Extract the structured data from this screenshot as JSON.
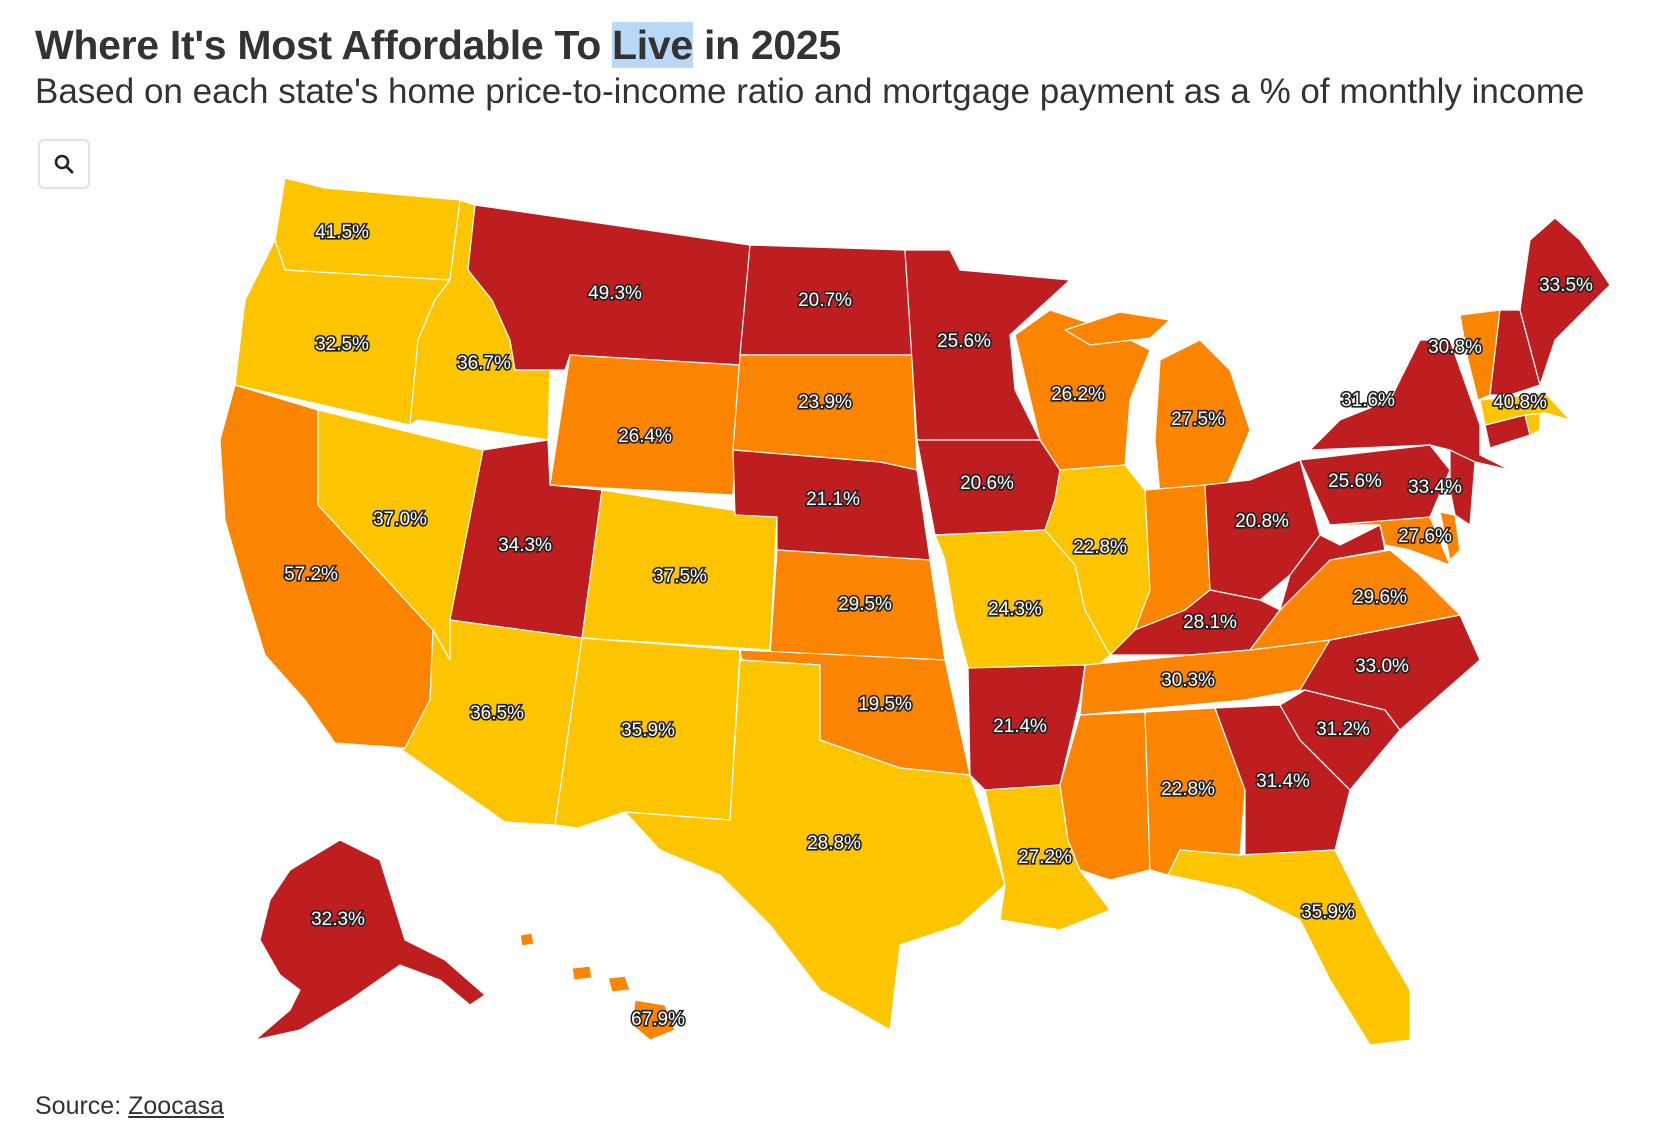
{
  "header": {
    "title_prefix": "Where It's Most Affordable To ",
    "title_highlight": "Live",
    "title_suffix": " in 2025",
    "subtitle": "Based on each state's home price-to-income ratio and mortgage payment as a % of monthly income"
  },
  "controls": {
    "zoom_icon": "search-icon"
  },
  "colors": {
    "dark_red": "#be1e1f",
    "orange": "#fb8500",
    "yellow": "#fdc500",
    "border": "#ffffff"
  },
  "footer": {
    "source_label": "Source: ",
    "source_link": "Zoocasa"
  },
  "states": [
    {
      "id": "WA",
      "value": "41.5%",
      "color": "#fdc500"
    },
    {
      "id": "OR",
      "value": "32.5%",
      "color": "#fdc500"
    },
    {
      "id": "CA",
      "value": "57.2%",
      "color": "#fb8500"
    },
    {
      "id": "ID",
      "value": "36.7%",
      "color": "#fdc500"
    },
    {
      "id": "NV",
      "value": "37.0%",
      "color": "#fdc500"
    },
    {
      "id": "MT",
      "value": "49.3%",
      "color": "#be1e1f"
    },
    {
      "id": "WY",
      "value": "26.4%",
      "color": "#fb8500"
    },
    {
      "id": "UT",
      "value": "34.3%",
      "color": "#be1e1f"
    },
    {
      "id": "CO",
      "value": "37.5%",
      "color": "#fdc500"
    },
    {
      "id": "AZ",
      "value": "36.5%",
      "color": "#fdc500"
    },
    {
      "id": "NM",
      "value": "35.9%",
      "color": "#fdc500"
    },
    {
      "id": "ND",
      "value": "20.7%",
      "color": "#be1e1f"
    },
    {
      "id": "SD",
      "value": "23.9%",
      "color": "#fb8500"
    },
    {
      "id": "NE",
      "value": "21.1%",
      "color": "#be1e1f"
    },
    {
      "id": "KS",
      "value": "29.5%",
      "color": "#fb8500"
    },
    {
      "id": "OK",
      "value": "19.5%",
      "color": "#fb8500"
    },
    {
      "id": "TX",
      "value": "28.8%",
      "color": "#fdc500"
    },
    {
      "id": "MN",
      "value": "25.6%",
      "color": "#be1e1f"
    },
    {
      "id": "IA",
      "value": "20.6%",
      "color": "#be1e1f"
    },
    {
      "id": "MO",
      "value": "24.3%",
      "color": "#fdc500"
    },
    {
      "id": "AR",
      "value": "21.4%",
      "color": "#be1e1f"
    },
    {
      "id": "LA",
      "value": "27.2%",
      "color": "#fdc500"
    },
    {
      "id": "WI",
      "value": "26.2%",
      "color": "#fb8500"
    },
    {
      "id": "IL",
      "value": "22.8%",
      "color": "#fdc500"
    },
    {
      "id": "MI",
      "value": "27.5%",
      "color": "#fb8500"
    },
    {
      "id": "IN",
      "value": "",
      "color": "#fb8500"
    },
    {
      "id": "OH",
      "value": "20.8%",
      "color": "#be1e1f"
    },
    {
      "id": "KY",
      "value": "28.1%",
      "color": "#be1e1f"
    },
    {
      "id": "TN",
      "value": "30.3%",
      "color": "#fb8500"
    },
    {
      "id": "MS",
      "value": "",
      "color": "#fb8500"
    },
    {
      "id": "AL",
      "value": "22.8%",
      "color": "#fb8500"
    },
    {
      "id": "GA",
      "value": "31.4%",
      "color": "#be1e1f"
    },
    {
      "id": "FL",
      "value": "35.9%",
      "color": "#fdc500"
    },
    {
      "id": "SC",
      "value": "31.2%",
      "color": "#be1e1f"
    },
    {
      "id": "NC",
      "value": "33.0%",
      "color": "#be1e1f"
    },
    {
      "id": "VA",
      "value": "29.6%",
      "color": "#fb8500"
    },
    {
      "id": "WV",
      "value": "",
      "color": "#be1e1f"
    },
    {
      "id": "MD",
      "value": "27.6%",
      "color": "#fb8500"
    },
    {
      "id": "DE",
      "value": "",
      "color": "#fb8500"
    },
    {
      "id": "PA",
      "value": "25.6%",
      "color": "#be1e1f"
    },
    {
      "id": "NJ",
      "value": "33.4%",
      "color": "#be1e1f"
    },
    {
      "id": "NY",
      "value": "31.6%",
      "color": "#be1e1f"
    },
    {
      "id": "CT",
      "value": "",
      "color": "#be1e1f"
    },
    {
      "id": "RI",
      "value": "",
      "color": "#fdc500"
    },
    {
      "id": "MA",
      "value": "40.8%",
      "color": "#fdc500"
    },
    {
      "id": "VT",
      "value": "30.8%",
      "color": "#fb8500"
    },
    {
      "id": "NH",
      "value": "",
      "color": "#be1e1f"
    },
    {
      "id": "ME",
      "value": "33.5%",
      "color": "#be1e1f"
    },
    {
      "id": "AK",
      "value": "32.3%",
      "color": "#be1e1f"
    },
    {
      "id": "HI",
      "value": "67.9%",
      "color": "#fb8500"
    }
  ]
}
